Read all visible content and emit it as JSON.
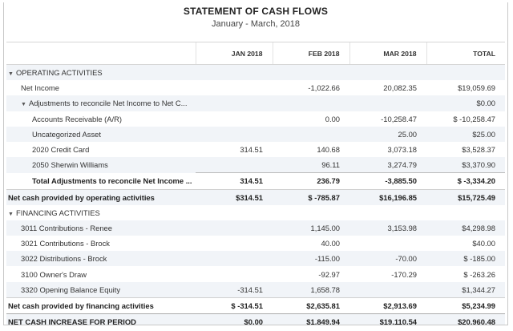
{
  "report": {
    "title": "STATEMENT OF CASH FLOWS",
    "period": "January - March, 2018"
  },
  "columns": [
    "",
    "JAN 2018",
    "FEB 2018",
    "MAR 2018",
    "TOTAL"
  ],
  "rows": [
    {
      "label": "OPERATING ACTIVITIES",
      "indent": 0,
      "caret": true,
      "style": "section",
      "values": [
        "",
        "",
        "",
        ""
      ]
    },
    {
      "label": "Net Income",
      "indent": 1,
      "caret": false,
      "style": "normal",
      "values": [
        "",
        "-1,022.66",
        "20,082.35",
        "$19,059.69"
      ]
    },
    {
      "label": "Adjustments to reconcile Net Income to Net C...",
      "indent": 1,
      "caret": true,
      "style": "normal",
      "values": [
        "",
        "",
        "",
        "$0.00"
      ]
    },
    {
      "label": "Accounts Receivable (A/R)",
      "indent": 2,
      "caret": false,
      "style": "normal",
      "values": [
        "",
        "0.00",
        "-10,258.47",
        "$ -10,258.47"
      ]
    },
    {
      "label": "Uncategorized Asset",
      "indent": 2,
      "caret": false,
      "style": "normal",
      "values": [
        "",
        "",
        "25.00",
        "$25.00"
      ]
    },
    {
      "label": "2020 Credit Card",
      "indent": 2,
      "caret": false,
      "style": "normal",
      "values": [
        "314.51",
        "140.68",
        "3,073.18",
        "$3,528.37"
      ]
    },
    {
      "label": "2050 Sherwin Williams",
      "indent": 2,
      "caret": false,
      "style": "normal",
      "values": [
        "",
        "96.11",
        "3,274.79",
        "$3,370.90"
      ]
    },
    {
      "label": "Total Adjustments to reconcile Net Income ...",
      "indent": 2,
      "caret": false,
      "style": "subtotal",
      "values": [
        "314.51",
        "236.79",
        "-3,885.50",
        "$ -3,334.20"
      ]
    },
    {
      "label": "Net cash provided by operating activities",
      "indent": 0,
      "caret": false,
      "style": "total",
      "values": [
        "$314.51",
        "$ -785.87",
        "$16,196.85",
        "$15,725.49"
      ]
    },
    {
      "label": "FINANCING ACTIVITIES",
      "indent": 0,
      "caret": true,
      "style": "section",
      "values": [
        "",
        "",
        "",
        ""
      ]
    },
    {
      "label": "3011 Contributions - Renee",
      "indent": 1,
      "caret": false,
      "style": "normal",
      "values": [
        "",
        "1,145.00",
        "3,153.98",
        "$4,298.98"
      ]
    },
    {
      "label": "3021 Contributions - Brock",
      "indent": 1,
      "caret": false,
      "style": "normal",
      "values": [
        "",
        "40.00",
        "",
        "$40.00"
      ]
    },
    {
      "label": "3022 Distributions - Brock",
      "indent": 1,
      "caret": false,
      "style": "normal",
      "values": [
        "",
        "-115.00",
        "-70.00",
        "$ -185.00"
      ]
    },
    {
      "label": "3100 Owner's Draw",
      "indent": 1,
      "caret": false,
      "style": "normal",
      "values": [
        "",
        "-92.97",
        "-170.29",
        "$ -263.26"
      ]
    },
    {
      "label": "3320 Opening Balance Equity",
      "indent": 1,
      "caret": false,
      "style": "normal",
      "values": [
        "-314.51",
        "1,658.78",
        "",
        "$1,344.27"
      ]
    },
    {
      "label": "Net cash provided by financing activities",
      "indent": 0,
      "caret": false,
      "style": "total",
      "values": [
        "$ -314.51",
        "$2,635.81",
        "$2,913.69",
        "$5,234.99"
      ]
    },
    {
      "label": "NET CASH INCREASE FOR PERIOD",
      "indent": 0,
      "caret": false,
      "style": "grand",
      "values": [
        "$0.00",
        "$1,849.94",
        "$19,110.54",
        "$20,960.48"
      ]
    }
  ]
}
